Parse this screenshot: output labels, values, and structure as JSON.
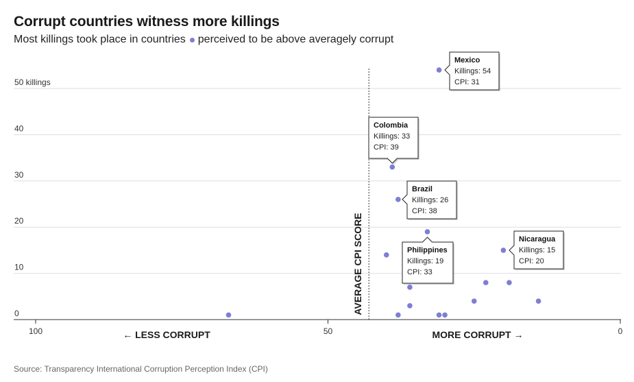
{
  "header": {
    "title": "Corrupt countries witness more killings",
    "subtitle_before": "Most killings took place in countries",
    "subtitle_after": "perceived to be above averagely corrupt"
  },
  "footer": {
    "source": "Source: Transparency International Corruption Perception Index (CPI)"
  },
  "colors": {
    "dot": "#7e7ed4",
    "grid": "#dddddd",
    "axis": "#333333"
  },
  "chart_data": {
    "type": "scatter",
    "xlim": [
      100,
      0
    ],
    "ylim": [
      0,
      54
    ],
    "x_reversed": true,
    "x_ticks": [
      {
        "value": 100,
        "label": "100"
      },
      {
        "value": 50,
        "label": "50"
      },
      {
        "value": 0,
        "label": "0"
      }
    ],
    "y_ticks": [
      {
        "value": 0,
        "label": "0"
      },
      {
        "value": 10,
        "label": "10"
      },
      {
        "value": 20,
        "label": "20"
      },
      {
        "value": 30,
        "label": "30"
      },
      {
        "value": 40,
        "label": "40"
      },
      {
        "value": 50,
        "label": "50 killings"
      }
    ],
    "grid": true,
    "average_cpi": 43,
    "average_label": "AVERAGE CPI SCORE",
    "left_direction_label": "← LESS CORRUPT",
    "right_direction_label": "MORE CORRUPT →",
    "points": [
      {
        "x": 31,
        "y": 54
      },
      {
        "x": 39,
        "y": 33
      },
      {
        "x": 38,
        "y": 26
      },
      {
        "x": 33,
        "y": 19
      },
      {
        "x": 20,
        "y": 15
      },
      {
        "x": 40,
        "y": 14
      },
      {
        "x": 36,
        "y": 7
      },
      {
        "x": 23,
        "y": 8
      },
      {
        "x": 19,
        "y": 8
      },
      {
        "x": 25,
        "y": 4
      },
      {
        "x": 14,
        "y": 4
      },
      {
        "x": 36,
        "y": 3
      },
      {
        "x": 67,
        "y": 1
      },
      {
        "x": 38,
        "y": 1
      },
      {
        "x": 31,
        "y": 1
      },
      {
        "x": 30,
        "y": 1
      }
    ],
    "annotations": [
      {
        "name": "Mexico",
        "killings_label": "Killings: 54",
        "cpi_label": "CPI: 31",
        "x": 31,
        "y": 54
      },
      {
        "name": "Colombia",
        "killings_label": "Killings: 33",
        "cpi_label": "CPI: 39",
        "x": 39,
        "y": 33
      },
      {
        "name": "Brazil",
        "killings_label": "Killings: 26",
        "cpi_label": "CPI: 38",
        "x": 38,
        "y": 26
      },
      {
        "name": "Philippines",
        "killings_label": "Killings: 19",
        "cpi_label": "CPI: 33",
        "x": 33,
        "y": 19
      },
      {
        "name": "Nicaragua",
        "killings_label": "Killings: 15",
        "cpi_label": "CPI: 20",
        "x": 20,
        "y": 15
      }
    ]
  }
}
